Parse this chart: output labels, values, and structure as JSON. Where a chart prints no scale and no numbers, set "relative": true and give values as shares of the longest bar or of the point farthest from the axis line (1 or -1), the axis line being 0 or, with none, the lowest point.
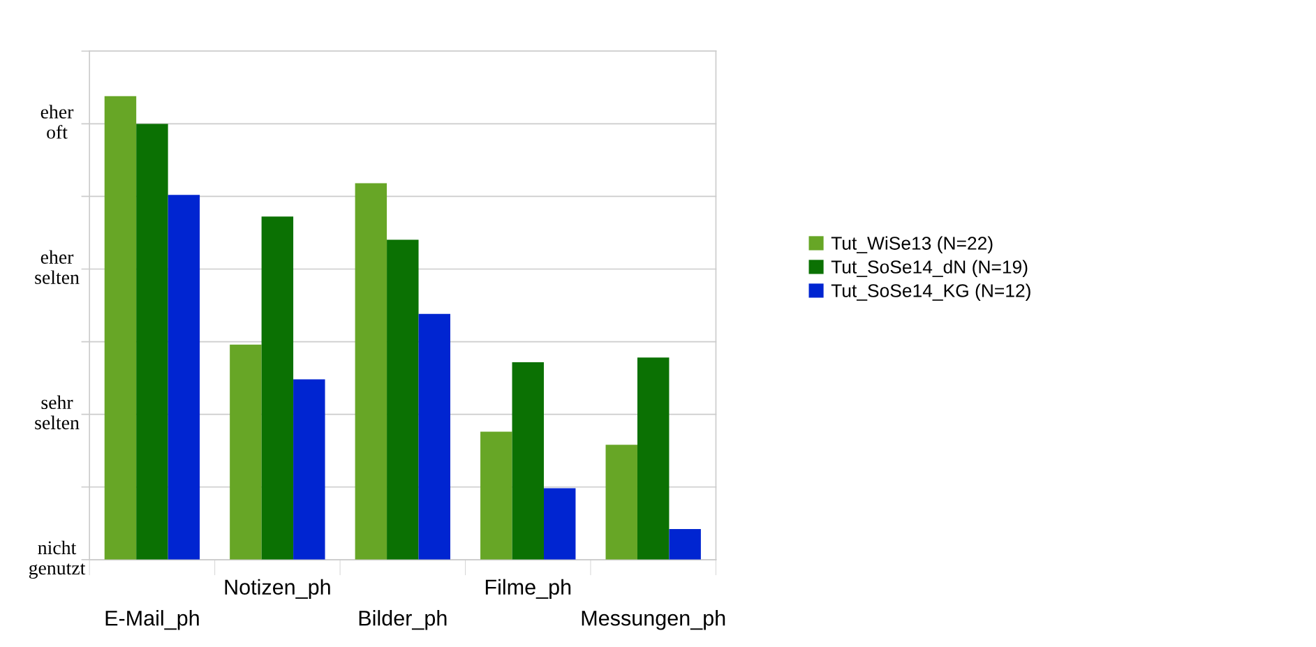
{
  "chart_data": {
    "type": "bar",
    "categories": [
      "E-Mail_ph",
      "Notizen_ph",
      "Bilder_ph",
      "Filme_ph",
      "Messungen_ph"
    ],
    "series": [
      {
        "name": "Tut_WiSe13 (N=22)",
        "color": "#67a626",
        "values": [
          1,
          0.464,
          0.812,
          0.276,
          0.248
        ]
      },
      {
        "name": "Tut_SoSe14_dN (N=19)",
        "color": "#0b7103",
        "values": [
          0.94,
          0.74,
          0.69,
          0.426,
          0.436
        ]
      },
      {
        "name": "Tut_SoSe14_KG (N=12)",
        "color": "#0025d1",
        "values": [
          0.787,
          0.389,
          0.53,
          0.154,
          0.066
        ]
      }
    ],
    "relative": true,
    "annotations": [
      "eher\noft",
      "eher\nselten",
      "sehr\nselten",
      "nicht\ngenutzt"
    ],
    "grid": "y",
    "legend": "right"
  }
}
